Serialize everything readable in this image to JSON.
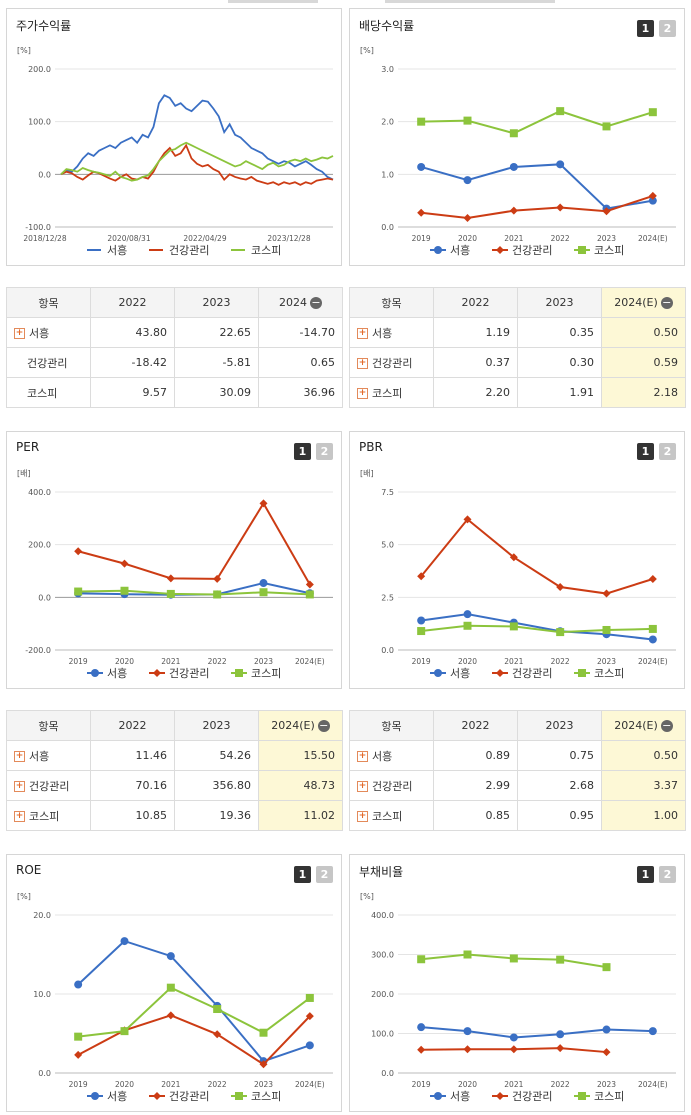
{
  "panels": [
    {
      "id": "p-stock",
      "title": "주가수익률",
      "buttons": [],
      "chart_data": {
        "type": "line",
        "unit": "[%]",
        "ylim": [
          -100,
          200
        ],
        "yticks": [
          "200.0",
          "100.0",
          "0.0",
          "-100.0"
        ],
        "ytick_values": [
          200,
          100,
          0,
          -100
        ],
        "xlabels": [
          "2018/12/28",
          "2020/08/31",
          "2022/04/29",
          "2023/12/28"
        ],
        "series": [
          {
            "name": "서흥",
            "color": "#3a6fc4",
            "values": [
              0,
              8,
              5,
              15,
              30,
              40,
              35,
              45,
              50,
              55,
              50,
              60,
              65,
              70,
              60,
              75,
              70,
              90,
              135,
              150,
              145,
              130,
              135,
              125,
              120,
              130,
              140,
              138,
              125,
              110,
              80,
              95,
              75,
              70,
              60,
              50,
              45,
              40,
              30,
              25,
              20,
              25,
              22,
              15,
              20,
              25,
              18,
              10,
              5,
              -5,
              -10
            ]
          },
          {
            "name": "건강관리",
            "color": "#cc3c14",
            "values": [
              0,
              5,
              2,
              -5,
              -10,
              -2,
              5,
              2,
              -3,
              -8,
              -12,
              -5,
              0,
              -8,
              -10,
              -5,
              -8,
              5,
              25,
              40,
              50,
              35,
              40,
              55,
              30,
              20,
              15,
              18,
              10,
              5,
              -10,
              0,
              -5,
              -8,
              -10,
              -5,
              -12,
              -15,
              -18,
              -15,
              -20,
              -15,
              -18,
              -15,
              -20,
              -15,
              -18,
              -12,
              -10,
              -8,
              -10
            ]
          },
          {
            "name": "코스피",
            "color": "#8cc43c",
            "values": [
              0,
              10,
              8,
              5,
              12,
              8,
              5,
              3,
              0,
              -3,
              5,
              -5,
              -8,
              -12,
              -10,
              -5,
              -2,
              10,
              25,
              35,
              45,
              48,
              55,
              60,
              55,
              50,
              45,
              40,
              35,
              30,
              25,
              20,
              15,
              18,
              25,
              20,
              15,
              10,
              18,
              22,
              15,
              18,
              25,
              28,
              25,
              30,
              25,
              28,
              32,
              30,
              35
            ]
          }
        ]
      }
    },
    {
      "id": "p-div",
      "title": "배당수익률",
      "buttons": [
        "1",
        "2"
      ],
      "chart_data": {
        "type": "line",
        "unit": "[%]",
        "ylim": [
          0,
          3
        ],
        "yticks": [
          "3.0",
          "2.0",
          "1.0",
          "0.0"
        ],
        "ytick_values": [
          3,
          2,
          1,
          0
        ],
        "categories": [
          "2019",
          "2020",
          "2021",
          "2022",
          "2023",
          "2024(E)"
        ],
        "series": [
          {
            "name": "서흥",
            "color": "#3a6fc4",
            "marker": "circle",
            "values": [
              1.14,
              0.89,
              1.14,
              1.19,
              0.35,
              0.5
            ]
          },
          {
            "name": "건강관리",
            "color": "#cc3c14",
            "marker": "diamond",
            "values": [
              0.27,
              0.17,
              0.31,
              0.37,
              0.3,
              0.59
            ]
          },
          {
            "name": "코스피",
            "color": "#8cc43c",
            "marker": "square",
            "values": [
              2.0,
              2.02,
              1.78,
              2.2,
              1.91,
              2.18
            ]
          }
        ]
      }
    },
    {
      "id": "p-per",
      "title": "PER",
      "buttons": [
        "1",
        "2"
      ],
      "chart_data": {
        "type": "line",
        "unit": "[배]",
        "ylim": [
          -200,
          400
        ],
        "yticks": [
          "400.0",
          "200.0",
          "0.0",
          "-200.0"
        ],
        "ytick_values": [
          400,
          200,
          0,
          -200
        ],
        "categories": [
          "2019",
          "2020",
          "2021",
          "2022",
          "2023",
          "2024(E)"
        ],
        "series": [
          {
            "name": "서흥",
            "color": "#3a6fc4",
            "marker": "circle",
            "values": [
              15,
              12,
              10,
              11.46,
              54.26,
              15.5
            ]
          },
          {
            "name": "건강관리",
            "color": "#cc3c14",
            "marker": "diamond",
            "values": [
              175,
              128,
              72,
              70.16,
              356.8,
              48.73
            ]
          },
          {
            "name": "코스피",
            "color": "#8cc43c",
            "marker": "square",
            "values": [
              22,
              25,
              13,
              10.85,
              19.36,
              11.02
            ]
          }
        ]
      }
    },
    {
      "id": "p-pbr",
      "title": "PBR",
      "buttons": [
        "1",
        "2"
      ],
      "chart_data": {
        "type": "line",
        "unit": "[배]",
        "ylim": [
          0,
          7.5
        ],
        "yticks": [
          "7.5",
          "5.0",
          "2.5",
          "0.0"
        ],
        "ytick_values": [
          7.5,
          5,
          2.5,
          0
        ],
        "categories": [
          "2019",
          "2020",
          "2021",
          "2022",
          "2023",
          "2024(E)"
        ],
        "series": [
          {
            "name": "서흥",
            "color": "#3a6fc4",
            "marker": "circle",
            "values": [
              1.4,
              1.7,
              1.3,
              0.89,
              0.75,
              0.5
            ]
          },
          {
            "name": "건강관리",
            "color": "#cc3c14",
            "marker": "diamond",
            "values": [
              3.5,
              6.2,
              4.4,
              2.99,
              2.68,
              3.37
            ]
          },
          {
            "name": "코스피",
            "color": "#8cc43c",
            "marker": "square",
            "values": [
              0.9,
              1.15,
              1.12,
              0.85,
              0.95,
              1.0
            ]
          }
        ]
      }
    },
    {
      "id": "p-roe",
      "title": "ROE",
      "buttons": [
        "1",
        "2"
      ],
      "chart_data": {
        "type": "line",
        "unit": "[%]",
        "ylim": [
          0,
          20
        ],
        "yticks": [
          "20.0",
          "10.0",
          "0.0"
        ],
        "ytick_values": [
          20,
          10,
          0
        ],
        "categories": [
          "2019",
          "2020",
          "2021",
          "2022",
          "2023",
          "2024(E)"
        ],
        "series": [
          {
            "name": "서흥",
            "color": "#3a6fc4",
            "marker": "circle",
            "values": [
              11.2,
              16.7,
              14.8,
              8.5,
              1.5,
              3.5
            ]
          },
          {
            "name": "건강관리",
            "color": "#cc3c14",
            "marker": "diamond",
            "values": [
              2.3,
              5.4,
              7.3,
              4.9,
              1.1,
              7.2
            ]
          },
          {
            "name": "코스피",
            "color": "#8cc43c",
            "marker": "square",
            "values": [
              4.6,
              5.3,
              10.8,
              8.1,
              5.1,
              9.5
            ]
          }
        ]
      }
    },
    {
      "id": "p-debt",
      "title": "부채비율",
      "buttons": [
        "1",
        "2"
      ],
      "chart_data": {
        "type": "line",
        "unit": "[%]",
        "ylim": [
          0,
          400
        ],
        "yticks": [
          "400.0",
          "300.0",
          "200.0",
          "100.0",
          "0.0"
        ],
        "ytick_values": [
          400,
          300,
          200,
          100,
          0
        ],
        "categories": [
          "2019",
          "2020",
          "2021",
          "2022",
          "2023",
          "2024(E)"
        ],
        "series": [
          {
            "name": "서흥",
            "color": "#3a6fc4",
            "marker": "circle",
            "values": [
              116,
              106,
              90,
              98,
              110,
              106
            ]
          },
          {
            "name": "건강관리",
            "color": "#cc3c14",
            "marker": "diamond",
            "values": [
              59,
              60,
              60,
              63,
              53,
              null
            ]
          },
          {
            "name": "코스피",
            "color": "#8cc43c",
            "marker": "square",
            "values": [
              288,
              300,
              290,
              287,
              268,
              null
            ]
          }
        ]
      }
    }
  ],
  "tables": [
    {
      "id": "t-stock",
      "headers": [
        "항목",
        "2022",
        "2023",
        "2024"
      ],
      "minus_icon": true,
      "highlight_last": false,
      "rows": [
        {
          "label": "서흥",
          "plus": true,
          "values": [
            "43.80",
            "22.65",
            "-14.70"
          ]
        },
        {
          "label": "건강관리",
          "plus": false,
          "values": [
            "-18.42",
            "-5.81",
            "0.65"
          ]
        },
        {
          "label": "코스피",
          "plus": false,
          "values": [
            "9.57",
            "30.09",
            "36.96"
          ]
        }
      ]
    },
    {
      "id": "t-div",
      "headers": [
        "항목",
        "2022",
        "2023",
        "2024(E)"
      ],
      "minus_icon": true,
      "highlight_last": true,
      "rows": [
        {
          "label": "서흥",
          "plus": true,
          "values": [
            "1.19",
            "0.35",
            "0.50"
          ]
        },
        {
          "label": "건강관리",
          "plus": true,
          "values": [
            "0.37",
            "0.30",
            "0.59"
          ]
        },
        {
          "label": "코스피",
          "plus": true,
          "values": [
            "2.20",
            "1.91",
            "2.18"
          ]
        }
      ]
    },
    {
      "id": "t-per",
      "headers": [
        "항목",
        "2022",
        "2023",
        "2024(E)"
      ],
      "minus_icon": true,
      "highlight_last": true,
      "rows": [
        {
          "label": "서흥",
          "plus": true,
          "values": [
            "11.46",
            "54.26",
            "15.50"
          ]
        },
        {
          "label": "건강관리",
          "plus": true,
          "values": [
            "70.16",
            "356.80",
            "48.73"
          ]
        },
        {
          "label": "코스피",
          "plus": true,
          "values": [
            "10.85",
            "19.36",
            "11.02"
          ]
        }
      ]
    },
    {
      "id": "t-pbr",
      "headers": [
        "항목",
        "2022",
        "2023",
        "2024(E)"
      ],
      "minus_icon": true,
      "highlight_last": true,
      "rows": [
        {
          "label": "서흥",
          "plus": true,
          "values": [
            "0.89",
            "0.75",
            "0.50"
          ]
        },
        {
          "label": "건강관리",
          "plus": true,
          "values": [
            "2.99",
            "2.68",
            "3.37"
          ]
        },
        {
          "label": "코스피",
          "plus": true,
          "values": [
            "0.85",
            "0.95",
            "1.00"
          ]
        }
      ]
    }
  ],
  "legend_labels": [
    "서흥",
    "건강관리",
    "코스피"
  ],
  "icons": {
    "plus": "plus-box-icon",
    "minus": "minus-circle-icon"
  }
}
